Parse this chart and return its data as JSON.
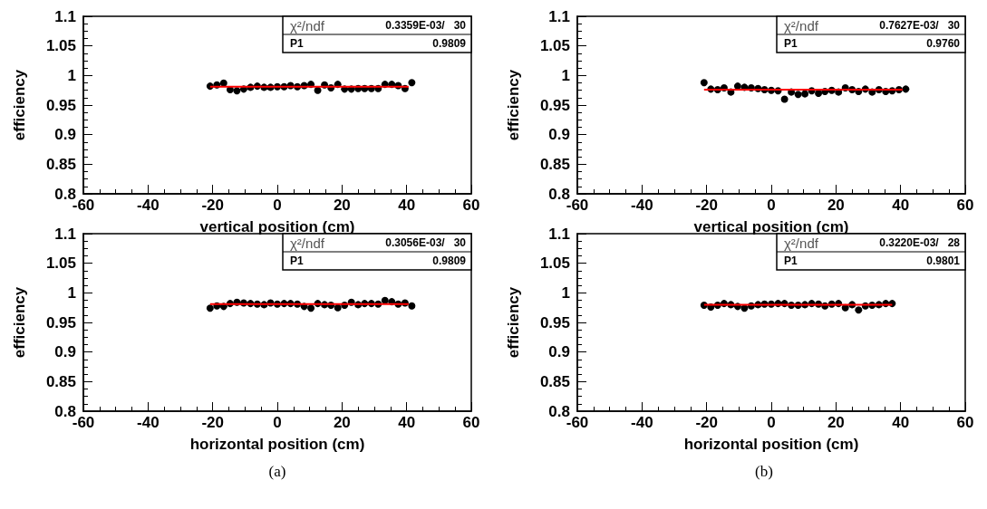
{
  "chart_data": [
    {
      "type": "scatter",
      "xlabel": "vertical position (cm)",
      "ylabel": "efficiency",
      "xlim": [
        -60,
        60
      ],
      "xticks": [
        -60,
        -40,
        -20,
        0,
        20,
        40,
        60
      ],
      "ylim": [
        0.8,
        1.1
      ],
      "yticks": [
        0.8,
        0.85,
        0.9,
        0.95,
        1,
        1.05,
        1.1
      ],
      "grid": false,
      "marker": "circle",
      "annotations": [
        "χ²/ndf",
        "0.3359E-03/   30",
        "P1",
        "0.9809"
      ],
      "series": [
        {
          "color": "#000000",
          "x": [
            -20.8,
            -18.7,
            -16.6,
            -14.6,
            -12.5,
            -10.4,
            -8.3,
            -6.2,
            -4.1,
            -2.1,
            0,
            2.1,
            4.1,
            6.2,
            8.3,
            10.4,
            12.5,
            14.6,
            16.6,
            18.7,
            20.8,
            22.9,
            25,
            27,
            29.1,
            31.2,
            33.3,
            35.4,
            37.4,
            39.5,
            41.6
          ],
          "values": [
            0.982,
            0.984,
            0.987,
            0.976,
            0.974,
            0.977,
            0.98,
            0.982,
            0.98,
            0.98,
            0.981,
            0.981,
            0.983,
            0.981,
            0.983,
            0.985,
            0.975,
            0.984,
            0.979,
            0.985,
            0.977,
            0.977,
            0.978,
            0.978,
            0.978,
            0.978,
            0.985,
            0.985,
            0.983,
            0.978,
            0.988
          ]
        },
        {
          "type": "line",
          "color": "#ff0000",
          "line_style": "solid",
          "marker": "none",
          "x": [
            -20.8,
            40.6
          ],
          "values": [
            0.981,
            0.981
          ]
        }
      ]
    },
    {
      "type": "scatter",
      "xlabel": "vertical position (cm)",
      "ylabel": "efficiency",
      "xlim": [
        -60,
        60
      ],
      "xticks": [
        -60,
        -40,
        -20,
        0,
        20,
        40,
        60
      ],
      "ylim": [
        0.8,
        1.1
      ],
      "yticks": [
        0.8,
        0.85,
        0.9,
        0.95,
        1,
        1.05,
        1.1
      ],
      "grid": false,
      "marker": "circle",
      "annotations": [
        "χ²/ndf",
        "0.7627E-03/   30",
        "P1",
        "0.9760"
      ],
      "series": [
        {
          "color": "#000000",
          "x": [
            -20.8,
            -18.7,
            -16.6,
            -14.6,
            -12.5,
            -10.4,
            -8.3,
            -6.2,
            -4.1,
            -2.1,
            0,
            2.1,
            4.1,
            6.2,
            8.3,
            10.4,
            12.5,
            14.6,
            16.6,
            18.7,
            20.8,
            22.9,
            25,
            27,
            29.1,
            31.2,
            33.3,
            35.4,
            37.4,
            39.5,
            41.6
          ],
          "values": [
            0.988,
            0.977,
            0.976,
            0.979,
            0.972,
            0.982,
            0.98,
            0.979,
            0.978,
            0.976,
            0.975,
            0.974,
            0.96,
            0.972,
            0.968,
            0.969,
            0.974,
            0.97,
            0.973,
            0.975,
            0.972,
            0.979,
            0.976,
            0.973,
            0.977,
            0.972,
            0.976,
            0.973,
            0.974,
            0.976,
            0.977
          ]
        },
        {
          "type": "line",
          "color": "#ff0000",
          "line_style": "solid",
          "marker": "none",
          "x": [
            -20.8,
            40.6
          ],
          "values": [
            0.976,
            0.976
          ]
        }
      ]
    },
    {
      "type": "scatter",
      "xlabel": "horizontal position (cm)",
      "ylabel": "efficiency",
      "xlim": [
        -60,
        60
      ],
      "xticks": [
        -60,
        -40,
        -20,
        0,
        20,
        40,
        60
      ],
      "ylim": [
        0.8,
        1.1
      ],
      "yticks": [
        0.8,
        0.85,
        0.9,
        0.95,
        1,
        1.05,
        1.1
      ],
      "grid": false,
      "marker": "circle",
      "annotations": [
        "χ²/ndf",
        "0.3056E-03/   30",
        "P1",
        "0.9809",
        "(a)"
      ],
      "series": [
        {
          "color": "#000000",
          "x": [
            -20.8,
            -18.7,
            -16.6,
            -14.6,
            -12.5,
            -10.4,
            -8.3,
            -6.2,
            -4.1,
            -2.1,
            0,
            2.1,
            4.1,
            6.2,
            8.3,
            10.4,
            12.5,
            14.6,
            16.6,
            18.7,
            20.8,
            22.9,
            25,
            27,
            29.1,
            31.2,
            33.3,
            35.4,
            37.4,
            39.5,
            41.6
          ],
          "values": [
            0.974,
            0.978,
            0.977,
            0.982,
            0.984,
            0.983,
            0.982,
            0.981,
            0.98,
            0.983,
            0.981,
            0.982,
            0.982,
            0.981,
            0.977,
            0.974,
            0.982,
            0.98,
            0.979,
            0.975,
            0.979,
            0.984,
            0.98,
            0.982,
            0.982,
            0.981,
            0.987,
            0.985,
            0.981,
            0.983,
            0.978
          ]
        },
        {
          "type": "line",
          "color": "#ff0000",
          "line_style": "solid",
          "marker": "none",
          "x": [
            -20.8,
            40.6
          ],
          "values": [
            0.981,
            0.981
          ]
        }
      ]
    },
    {
      "type": "scatter",
      "xlabel": "horizontal position (cm)",
      "ylabel": "efficiency",
      "xlim": [
        -60,
        60
      ],
      "xticks": [
        -60,
        -40,
        -20,
        0,
        20,
        40,
        60
      ],
      "ylim": [
        0.8,
        1.1
      ],
      "yticks": [
        0.8,
        0.85,
        0.9,
        0.95,
        1,
        1.05,
        1.1
      ],
      "grid": false,
      "marker": "circle",
      "annotations": [
        "χ²/ndf",
        "0.3220E-03/   28",
        "P1",
        "0.9801",
        "(b)"
      ],
      "series": [
        {
          "color": "#000000",
          "x": [
            -20.8,
            -18.7,
            -16.6,
            -14.6,
            -12.5,
            -10.4,
            -8.3,
            -6.2,
            -4.1,
            -2.1,
            0,
            2.1,
            4.1,
            6.2,
            8.3,
            10.4,
            12.5,
            14.6,
            16.6,
            18.7,
            20.8,
            22.9,
            25,
            27,
            29.1,
            31.2,
            33.3,
            35.4,
            37.4
          ],
          "values": [
            0.979,
            0.976,
            0.979,
            0.982,
            0.98,
            0.977,
            0.974,
            0.978,
            0.98,
            0.981,
            0.981,
            0.982,
            0.982,
            0.979,
            0.979,
            0.98,
            0.982,
            0.981,
            0.978,
            0.981,
            0.982,
            0.975,
            0.98,
            0.971,
            0.978,
            0.979,
            0.98,
            0.982,
            0.982
          ]
        },
        {
          "type": "line",
          "color": "#ff0000",
          "line_style": "solid",
          "marker": "none",
          "x": [
            -20.8,
            37.4
          ],
          "values": [
            0.98,
            0.98
          ]
        }
      ]
    }
  ]
}
